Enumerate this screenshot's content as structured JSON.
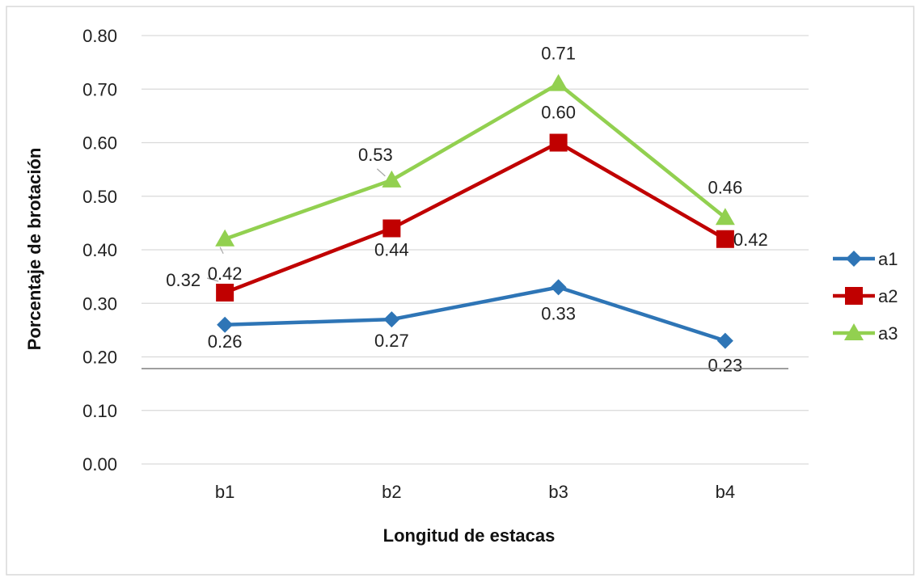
{
  "chart_data": {
    "type": "line",
    "xlabel": "Longitud de estacas",
    "ylabel": "Porcentaje de brotación",
    "categories": [
      "b1",
      "b2",
      "b3",
      "b4"
    ],
    "ylim": [
      0,
      0.8
    ],
    "yticks": [
      "0.00",
      "0.10",
      "0.20",
      "0.30",
      "0.40",
      "0.50",
      "0.60",
      "0.70",
      "0.80"
    ],
    "grid": true,
    "legend_position": "right",
    "series": [
      {
        "name": "a1",
        "marker": "diamond",
        "color": "#2E75B6",
        "values": [
          0.26,
          0.27,
          0.33,
          0.23
        ],
        "labels": [
          "0.26",
          "0.27",
          "0.33",
          "0.23"
        ]
      },
      {
        "name": "a2",
        "marker": "square",
        "color": "#C00000",
        "values": [
          0.32,
          0.44,
          0.6,
          0.42
        ],
        "labels": [
          "0.32",
          "0.44",
          "0.60",
          "0.42"
        ]
      },
      {
        "name": "a3",
        "marker": "triangle",
        "color": "#92D050",
        "values": [
          0.42,
          0.53,
          0.71,
          0.46
        ],
        "labels": [
          "0.42",
          "0.53",
          "0.71",
          "0.46"
        ]
      }
    ]
  }
}
